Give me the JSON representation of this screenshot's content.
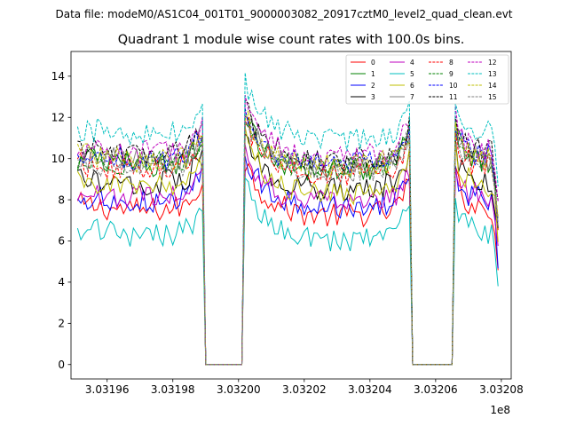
{
  "suptitle": "Data file: modeM0/AS1C04_001T01_9000003082_20917cztM0_level2_quad_clean.evt",
  "chart_data": {
    "type": "line",
    "title": "Quadrant 1 module wise count rates with 100.0s bins.",
    "xlabel": "",
    "ylabel": "",
    "x_offset_label": "1e8",
    "xlim": [
      3.031949,
      3.032083
    ],
    "ylim": [
      -0.7,
      15.2
    ],
    "x_ticks": [
      3.03196,
      3.03198,
      3.032,
      3.03202,
      3.03204,
      3.03206,
      3.03208
    ],
    "x_tick_labels": [
      "3.03196",
      "3.03198",
      "3.03200",
      "3.03202",
      "3.03204",
      "3.03206",
      "3.03208"
    ],
    "y_ticks": [
      0,
      2,
      4,
      6,
      8,
      10,
      12,
      14
    ],
    "y_tick_labels": [
      "0",
      "2",
      "4",
      "6",
      "8",
      "10",
      "12",
      "14"
    ],
    "x_start": 3.031951,
    "x_step": 1e-06,
    "gaps": [
      [
        3.0319897,
        3.0320017
      ],
      [
        3.0320527,
        3.0320657
      ]
    ],
    "legend_location": "upper right",
    "series": [
      {
        "name": "0",
        "color": "#ff0000",
        "style": "solid",
        "level": 7.6
      },
      {
        "name": "1",
        "color": "#008000",
        "style": "solid",
        "level": 9.8
      },
      {
        "name": "2",
        "color": "#0000ff",
        "style": "solid",
        "level": 8.0
      },
      {
        "name": "3",
        "color": "#000000",
        "style": "solid",
        "level": 8.9
      },
      {
        "name": "4",
        "color": "#bf00bf",
        "style": "solid",
        "level": 8.2
      },
      {
        "name": "5",
        "color": "#00bfbf",
        "style": "solid",
        "level": 6.4
      },
      {
        "name": "6",
        "color": "#bfbf00",
        "style": "solid",
        "level": 8.7
      },
      {
        "name": "7",
        "color": "#808080",
        "style": "solid",
        "level": 10.0
      },
      {
        "name": "8",
        "color": "#ff0000",
        "style": "dashed",
        "level": 9.6
      },
      {
        "name": "9",
        "color": "#008000",
        "style": "dashed",
        "level": 9.9
      },
      {
        "name": "10",
        "color": "#0000ff",
        "style": "dashed",
        "level": 10.1
      },
      {
        "name": "11",
        "color": "#000000",
        "style": "dashed",
        "level": 10.3
      },
      {
        "name": "12",
        "color": "#bf00bf",
        "style": "dashed",
        "level": 10.4
      },
      {
        "name": "13",
        "color": "#00bfbf",
        "style": "dashed",
        "level": 11.3
      },
      {
        "name": "14",
        "color": "#bfbf00",
        "style": "dashed",
        "level": 10.0
      },
      {
        "name": "15",
        "color": "#808080",
        "style": "dashed",
        "level": 9.7
      }
    ]
  }
}
